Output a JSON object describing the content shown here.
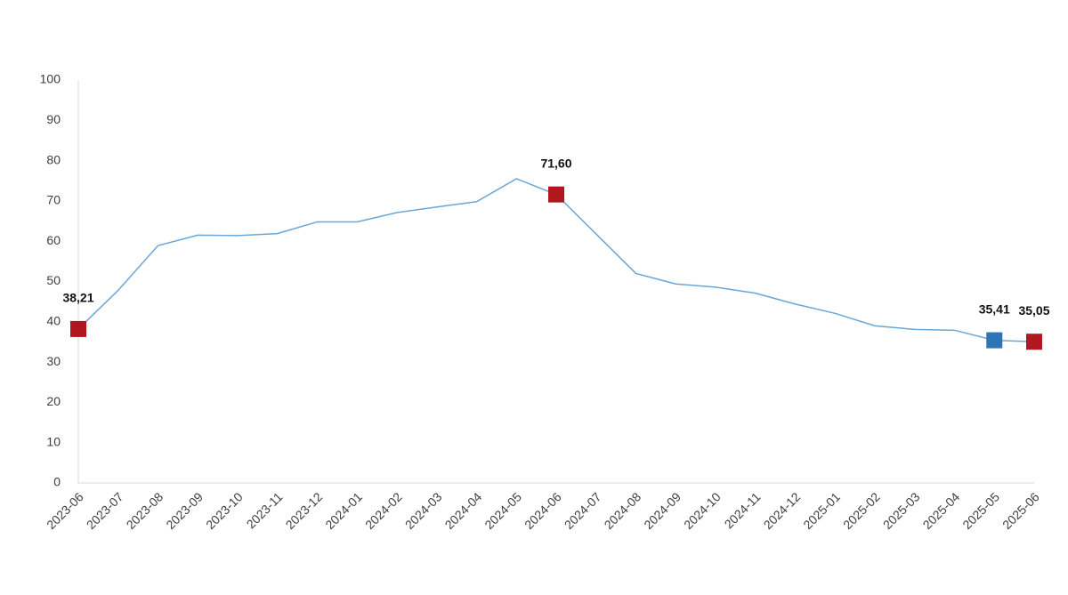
{
  "chart_data": {
    "type": "line",
    "categories": [
      "2023-06",
      "2023-07",
      "2023-08",
      "2023-09",
      "2023-10",
      "2023-11",
      "2023-12",
      "2024-01",
      "2024-02",
      "2024-03",
      "2024-04",
      "2024-05",
      "2024-06",
      "2024-07",
      "2024-08",
      "2024-09",
      "2024-10",
      "2024-11",
      "2024-12",
      "2025-01",
      "2025-02",
      "2025-03",
      "2025-04",
      "2025-05",
      "2025-06"
    ],
    "series": [
      {
        "color": "#6aa6d6",
        "values": [
          38.21,
          47.8,
          58.9,
          61.5,
          61.4,
          61.9,
          64.8,
          64.8,
          67.1,
          68.5,
          69.8,
          75.5,
          71.6,
          61.8,
          52.0,
          49.4,
          48.6,
          47.1,
          44.4,
          42.1,
          39.0,
          38.1,
          37.9,
          35.41,
          35.05
        ],
        "value_labels": [
          "38,21",
          null,
          null,
          null,
          null,
          null,
          null,
          null,
          null,
          null,
          null,
          null,
          "71,60",
          null,
          null,
          null,
          null,
          null,
          null,
          null,
          null,
          null,
          null,
          "35,41",
          "35,05"
        ],
        "marker_colors": [
          "#b0171f",
          null,
          null,
          null,
          null,
          null,
          null,
          null,
          null,
          null,
          null,
          null,
          "#b0171f",
          null,
          null,
          null,
          null,
          null,
          null,
          null,
          null,
          null,
          null,
          "#2e75b6",
          "#b0171f"
        ]
      }
    ],
    "ylim": [
      0,
      100
    ],
    "yticks": [
      0,
      10,
      20,
      30,
      40,
      50,
      60,
      70,
      80,
      90,
      100
    ],
    "grid": false
  }
}
